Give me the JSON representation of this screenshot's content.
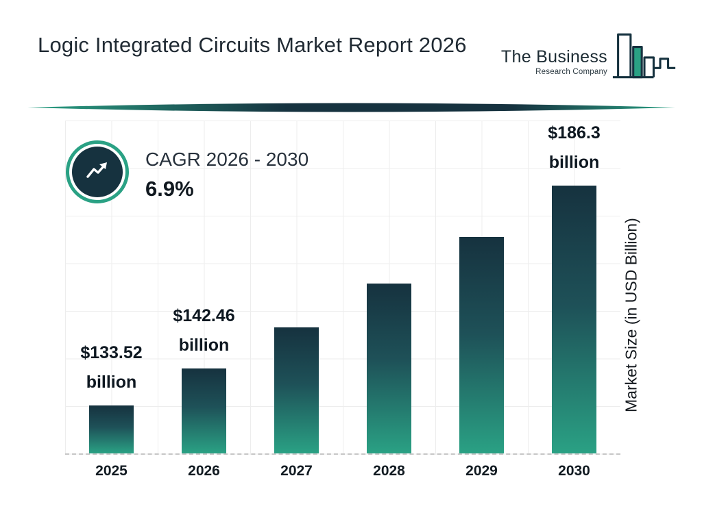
{
  "header": {
    "title": "Logic Integrated Circuits Market Report 2026",
    "logo": {
      "line1": "The Business",
      "line2": "Research Company"
    }
  },
  "cagr": {
    "label": "CAGR 2026 - 2030",
    "value": "6.9%"
  },
  "chart_data": {
    "type": "bar",
    "title": "",
    "categories": [
      "2025",
      "2026",
      "2027",
      "2028",
      "2029",
      "2030"
    ],
    "values": [
      133.52,
      142.46,
      152.3,
      162.8,
      174.0,
      186.3
    ],
    "bar_labels": [
      {
        "value": "$133.52",
        "unit": "billion"
      },
      {
        "value": "$142.46",
        "unit": "billion"
      },
      null,
      null,
      null,
      {
        "value": "$186.3",
        "unit": "billion"
      }
    ],
    "xlabel": "",
    "ylabel": "Market Size (in USD Billion)",
    "ylim": [
      122,
      202
    ],
    "grid": true,
    "legend": "none",
    "bar_gradient_top": "#16323F",
    "bar_gradient_bottom": "#2AA184"
  },
  "colors": {
    "accent_teal": "#2AA184",
    "dark_navy": "#16323F",
    "title_text": "#202A33",
    "gridline": "#EDEDED"
  }
}
